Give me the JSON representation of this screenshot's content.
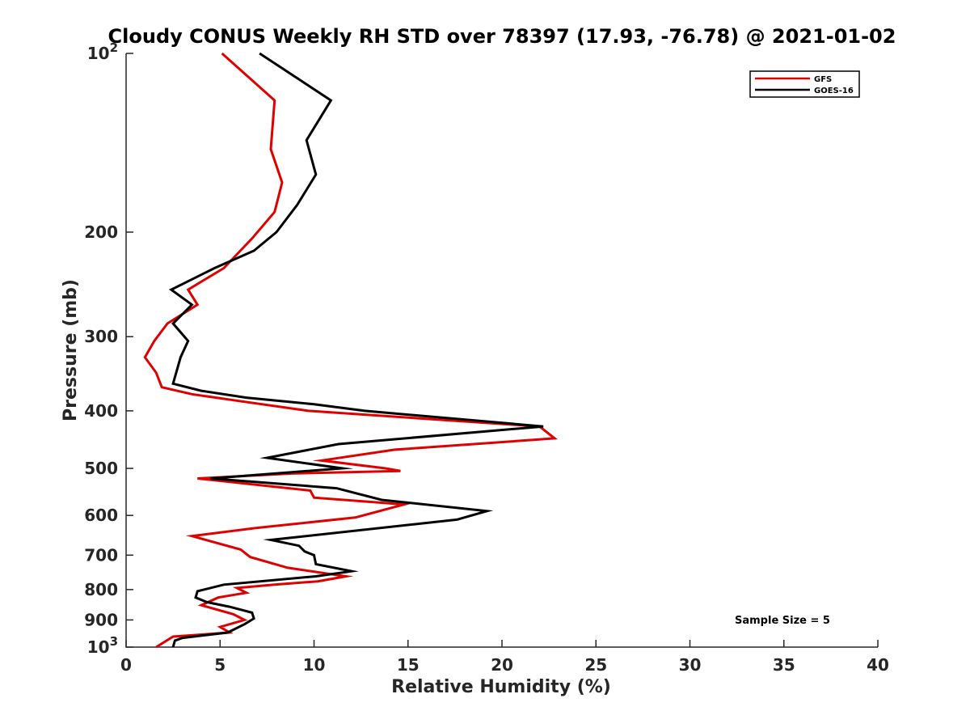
{
  "chart_data": {
    "type": "line",
    "title": "Cloudy CONUS Weekly RH STD over 78397 (17.93, -76.78) @ 2021-01-02",
    "xlabel": "Relative Humidity (%)",
    "ylabel": "Pressure (mb)",
    "xlim": [
      0,
      40
    ],
    "ylim": [
      100,
      1000
    ],
    "yscale": "log",
    "y_reversed": true,
    "grid": false,
    "x_ticks": [
      0,
      5,
      10,
      15,
      20,
      25,
      30,
      35,
      40
    ],
    "y_ticks": [
      100,
      200,
      300,
      400,
      500,
      600,
      700,
      800,
      900,
      1000
    ],
    "y_tick_labels": [
      {
        "base": "10",
        "exp": "2"
      },
      {
        "base": "200",
        "exp": ""
      },
      {
        "base": "300",
        "exp": ""
      },
      {
        "base": "400",
        "exp": ""
      },
      {
        "base": "500",
        "exp": ""
      },
      {
        "base": "600",
        "exp": ""
      },
      {
        "base": "700",
        "exp": ""
      },
      {
        "base": "800",
        "exp": ""
      },
      {
        "base": "900",
        "exp": ""
      },
      {
        "base": "10",
        "exp": "3"
      }
    ],
    "legend_position": "top-right",
    "annotation": "Sample Size = 5",
    "series": [
      {
        "name": "GFS",
        "color": "#e00000",
        "points": [
          [
            5.1,
            100
          ],
          [
            7.9,
            120
          ],
          [
            7.7,
            145
          ],
          [
            8.3,
            165
          ],
          [
            7.9,
            185
          ],
          [
            6.7,
            205
          ],
          [
            5.2,
            230
          ],
          [
            3.3,
            250
          ],
          [
            3.8,
            265
          ],
          [
            2.2,
            285
          ],
          [
            1.5,
            305
          ],
          [
            1.0,
            325
          ],
          [
            1.6,
            345
          ],
          [
            1.9,
            365
          ],
          [
            3.5,
            375
          ],
          [
            6.0,
            385
          ],
          [
            9.7,
            400
          ],
          [
            22.0,
            425
          ],
          [
            22.8,
            445
          ],
          [
            14.3,
            465
          ],
          [
            10.4,
            485
          ],
          [
            13.8,
            500
          ],
          [
            14.6,
            505
          ],
          [
            8.8,
            510
          ],
          [
            3.8,
            520
          ],
          [
            9.8,
            545
          ],
          [
            10.0,
            560
          ],
          [
            14.8,
            575
          ],
          [
            12.2,
            605
          ],
          [
            6.9,
            630
          ],
          [
            3.5,
            650
          ],
          [
            6.1,
            685
          ],
          [
            6.6,
            705
          ],
          [
            8.6,
            735
          ],
          [
            11.7,
            760
          ],
          [
            10.2,
            775
          ],
          [
            7.9,
            785
          ],
          [
            5.9,
            795
          ],
          [
            6.4,
            810
          ],
          [
            4.9,
            825
          ],
          [
            4.0,
            850
          ],
          [
            5.7,
            880
          ],
          [
            6.3,
            900
          ],
          [
            5.0,
            925
          ],
          [
            5.5,
            945
          ],
          [
            2.5,
            960
          ],
          [
            1.6,
            1000
          ]
        ]
      },
      {
        "name": "GOES-16",
        "color": "#000000",
        "points": [
          [
            7.1,
            100
          ],
          [
            10.9,
            120
          ],
          [
            9.6,
            140
          ],
          [
            10.1,
            160
          ],
          [
            9.1,
            180
          ],
          [
            8.0,
            200
          ],
          [
            6.8,
            215
          ],
          [
            4.7,
            230
          ],
          [
            2.4,
            250
          ],
          [
            3.5,
            265
          ],
          [
            2.5,
            285
          ],
          [
            3.3,
            305
          ],
          [
            2.9,
            325
          ],
          [
            2.5,
            360
          ],
          [
            4.0,
            370
          ],
          [
            6.4,
            380
          ],
          [
            10.0,
            390
          ],
          [
            12.7,
            400
          ],
          [
            22.2,
            425
          ],
          [
            11.3,
            455
          ],
          [
            7.5,
            480
          ],
          [
            11.5,
            500
          ],
          [
            4.5,
            520
          ],
          [
            11.2,
            540
          ],
          [
            13.6,
            565
          ],
          [
            19.2,
            590
          ],
          [
            17.6,
            610
          ],
          [
            7.7,
            660
          ],
          [
            9.2,
            675
          ],
          [
            9.5,
            690
          ],
          [
            10.0,
            700
          ],
          [
            10.1,
            725
          ],
          [
            12.0,
            745
          ],
          [
            10.1,
            760
          ],
          [
            5.2,
            785
          ],
          [
            3.8,
            805
          ],
          [
            3.7,
            825
          ],
          [
            4.3,
            840
          ],
          [
            5.5,
            855
          ],
          [
            6.7,
            875
          ],
          [
            6.8,
            895
          ],
          [
            6.3,
            915
          ],
          [
            5.4,
            945
          ],
          [
            3.0,
            965
          ],
          [
            2.6,
            975
          ],
          [
            2.5,
            1000
          ]
        ]
      }
    ]
  }
}
